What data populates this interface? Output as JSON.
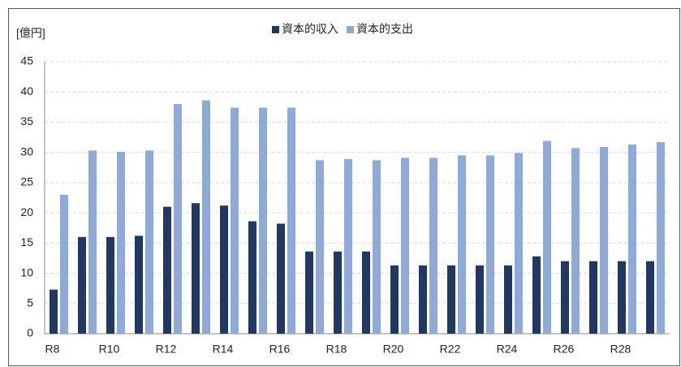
{
  "chart_data": {
    "type": "bar",
    "y_label": "[億円]",
    "categories": [
      "R8",
      null,
      "R10",
      null,
      "R12",
      null,
      "R14",
      null,
      "R16",
      null,
      "R18",
      null,
      "R20",
      null,
      "R22",
      null,
      "R24",
      null,
      "R26",
      null,
      "R28",
      null
    ],
    "series": [
      {
        "name": "資本的収入",
        "color": "#1f3864",
        "values": [
          7.3,
          16,
          16,
          16.2,
          21,
          21.6,
          21.2,
          18.6,
          18.2,
          13.6,
          13.6,
          13.6,
          11.3,
          11.3,
          11.3,
          11.3,
          11.3,
          12.8,
          12,
          12,
          12,
          12
        ]
      },
      {
        "name": "資本的支出",
        "color": "#8eaadb",
        "values": [
          23,
          30.3,
          30.1,
          30.3,
          38,
          38.6,
          37.4,
          37.4,
          37.4,
          28.7,
          28.9,
          28.7,
          29.1,
          29.1,
          29.5,
          29.5,
          29.9,
          31.9,
          30.7,
          30.9,
          31.3,
          31.7
        ]
      }
    ],
    "ylim": [
      0,
      45
    ],
    "yticks": [
      0,
      5,
      10,
      15,
      20,
      25,
      30,
      35,
      40,
      45
    ],
    "grid": true,
    "legend": "top"
  }
}
